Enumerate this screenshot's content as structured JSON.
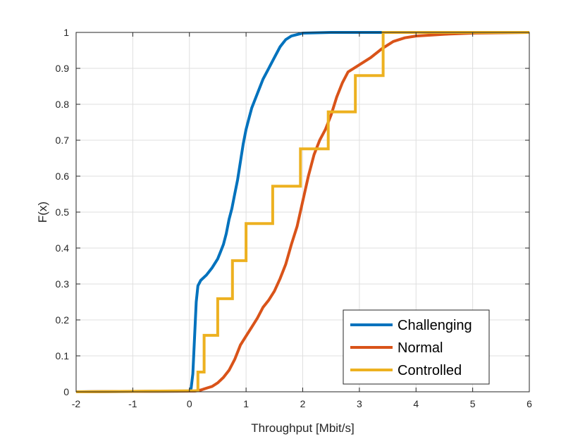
{
  "chart_data": {
    "type": "line",
    "title": "",
    "xlabel": "Throughput [Mbit/s]",
    "ylabel": "F(x)",
    "xlim": [
      -2,
      6
    ],
    "ylim": [
      0,
      1
    ],
    "xticks": [
      -2,
      -1,
      0,
      1,
      2,
      3,
      4,
      5,
      6
    ],
    "yticks": [
      0,
      0.1,
      0.2,
      0.3,
      0.4,
      0.5,
      0.6,
      0.7,
      0.8,
      0.9,
      1
    ],
    "xtick_labels": [
      "-2",
      "-1",
      "0",
      "1",
      "2",
      "3",
      "4",
      "5",
      "6"
    ],
    "ytick_labels": [
      "0",
      "0.1",
      "0.2",
      "0.3",
      "0.4",
      "0.5",
      "0.6",
      "0.7",
      "0.8",
      "0.9",
      "1"
    ],
    "grid": true,
    "legend_position": "bottom-right",
    "series": [
      {
        "name": "Challenging",
        "color": "#0072bd",
        "step": false,
        "points": [
          [
            -2,
            0
          ],
          [
            0,
            0.002
          ],
          [
            0.03,
            0.01
          ],
          [
            0.06,
            0.05
          ],
          [
            0.09,
            0.15
          ],
          [
            0.12,
            0.25
          ],
          [
            0.15,
            0.295
          ],
          [
            0.2,
            0.31
          ],
          [
            0.3,
            0.325
          ],
          [
            0.4,
            0.345
          ],
          [
            0.5,
            0.37
          ],
          [
            0.55,
            0.39
          ],
          [
            0.6,
            0.41
          ],
          [
            0.65,
            0.44
          ],
          [
            0.7,
            0.48
          ],
          [
            0.75,
            0.51
          ],
          [
            0.8,
            0.55
          ],
          [
            0.85,
            0.59
          ],
          [
            0.9,
            0.64
          ],
          [
            0.95,
            0.69
          ],
          [
            1.0,
            0.73
          ],
          [
            1.05,
            0.76
          ],
          [
            1.1,
            0.79
          ],
          [
            1.2,
            0.83
          ],
          [
            1.3,
            0.87
          ],
          [
            1.4,
            0.9
          ],
          [
            1.5,
            0.93
          ],
          [
            1.6,
            0.96
          ],
          [
            1.7,
            0.98
          ],
          [
            1.8,
            0.99
          ],
          [
            2.0,
            0.998
          ],
          [
            2.5,
            1.0
          ],
          [
            6,
            1.0
          ]
        ]
      },
      {
        "name": "Normal",
        "color": "#d95319",
        "step": false,
        "points": [
          [
            -2,
            0
          ],
          [
            -1.9,
            0
          ],
          [
            0.1,
            0.002
          ],
          [
            0.2,
            0.005
          ],
          [
            0.3,
            0.01
          ],
          [
            0.4,
            0.015
          ],
          [
            0.5,
            0.025
          ],
          [
            0.6,
            0.04
          ],
          [
            0.7,
            0.06
          ],
          [
            0.8,
            0.09
          ],
          [
            0.9,
            0.13
          ],
          [
            1.0,
            0.155
          ],
          [
            1.1,
            0.18
          ],
          [
            1.2,
            0.205
          ],
          [
            1.3,
            0.235
          ],
          [
            1.4,
            0.255
          ],
          [
            1.5,
            0.28
          ],
          [
            1.6,
            0.315
          ],
          [
            1.7,
            0.355
          ],
          [
            1.8,
            0.41
          ],
          [
            1.9,
            0.46
          ],
          [
            2.0,
            0.53
          ],
          [
            2.1,
            0.6
          ],
          [
            2.2,
            0.66
          ],
          [
            2.3,
            0.7
          ],
          [
            2.4,
            0.73
          ],
          [
            2.5,
            0.77
          ],
          [
            2.6,
            0.82
          ],
          [
            2.7,
            0.86
          ],
          [
            2.8,
            0.89
          ],
          [
            3.0,
            0.91
          ],
          [
            3.2,
            0.93
          ],
          [
            3.4,
            0.955
          ],
          [
            3.6,
            0.975
          ],
          [
            3.8,
            0.985
          ],
          [
            4.0,
            0.99
          ],
          [
            4.5,
            0.995
          ],
          [
            5.0,
            0.998
          ],
          [
            6.0,
            1.0
          ]
        ]
      },
      {
        "name": "Controlled",
        "color": "#edb120",
        "step": true,
        "points": [
          [
            -2,
            0
          ],
          [
            0.15,
            0.003
          ],
          [
            0.15,
            0.055
          ],
          [
            0.26,
            0.055
          ],
          [
            0.26,
            0.157
          ],
          [
            0.5,
            0.157
          ],
          [
            0.5,
            0.259
          ],
          [
            0.76,
            0.259
          ],
          [
            0.76,
            0.365
          ],
          [
            1.0,
            0.365
          ],
          [
            1.0,
            0.468
          ],
          [
            1.47,
            0.468
          ],
          [
            1.47,
            0.572
          ],
          [
            1.96,
            0.572
          ],
          [
            1.96,
            0.676
          ],
          [
            2.45,
            0.676
          ],
          [
            2.45,
            0.779
          ],
          [
            2.93,
            0.779
          ],
          [
            2.93,
            0.88
          ],
          [
            3.42,
            0.88
          ],
          [
            3.42,
            1.0
          ],
          [
            6.0,
            1.0
          ]
        ]
      }
    ]
  }
}
